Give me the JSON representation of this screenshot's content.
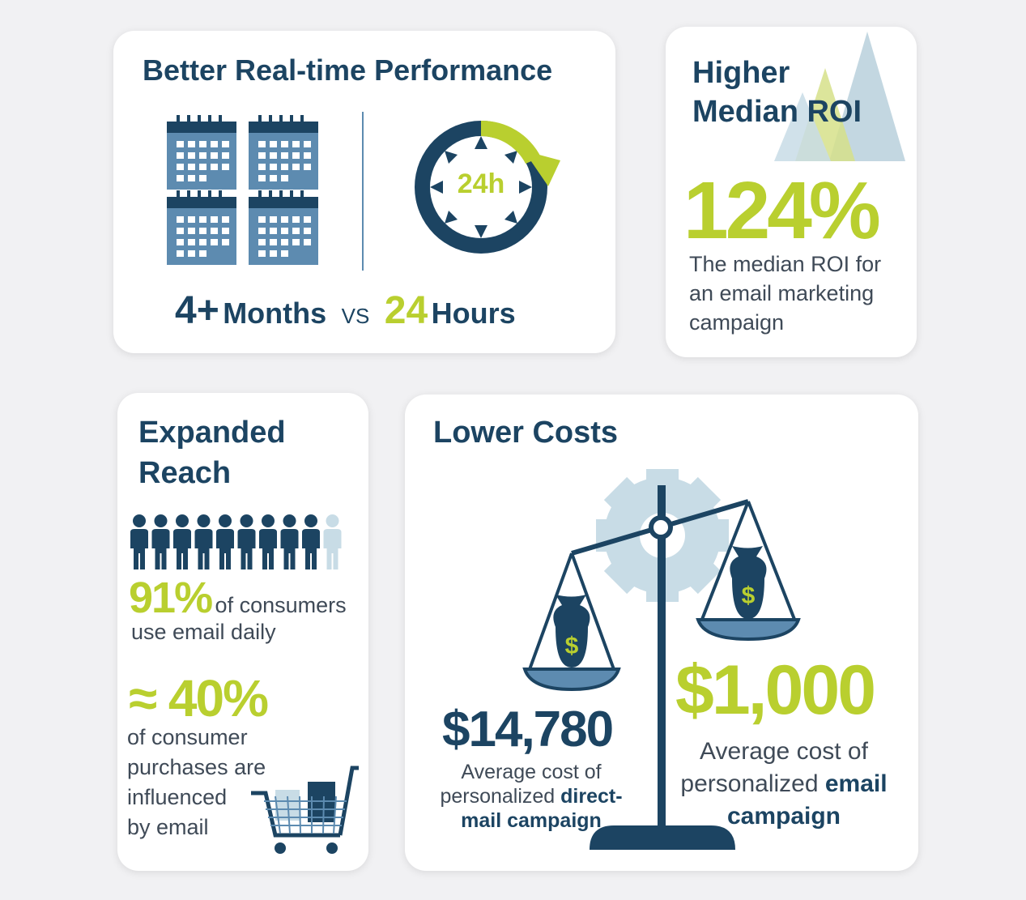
{
  "performance": {
    "title": "Better Real-time Performance",
    "clock_label": "24h",
    "left_value": "4+",
    "left_unit": "Months",
    "vs": "VS",
    "right_value": "24",
    "right_unit": "Hours"
  },
  "roi": {
    "title_line1": "Higher",
    "title_line2": "Median ROI",
    "value": "124%",
    "desc_line1": "The median ROI for",
    "desc_line2": "an email marketing",
    "desc_line3": "campaign"
  },
  "reach": {
    "title_line1": "Expanded",
    "title_line2": "Reach",
    "stat1_value": "91%",
    "stat1_text_a": "of consumers",
    "stat1_text_b": "use email daily",
    "stat2_value": "≈ 40%",
    "stat2_line1": "of consumer",
    "stat2_line2": "purchases are",
    "stat2_line3": "influenced",
    "stat2_line4": "by email",
    "people_shown": 9,
    "people_total": 10
  },
  "costs": {
    "title": "Lower Costs",
    "direct_value": "$14,780",
    "direct_line1": "Average cost of",
    "direct_line2_a": "personalized ",
    "direct_line2_b": "direct-",
    "direct_line3": "mail campaign",
    "email_value": "$1,000",
    "email_line1": "Average cost of",
    "email_line2_a": "personalized ",
    "email_line2_b": "email",
    "email_line3": "campaign",
    "dollar_sign": "$"
  },
  "colors": {
    "dark_blue": "#1c4462",
    "mid_blue": "#5d8bb0",
    "light_blue": "#c8dce6",
    "green": "#b9cf2f",
    "text_gray": "#3f4a57"
  }
}
